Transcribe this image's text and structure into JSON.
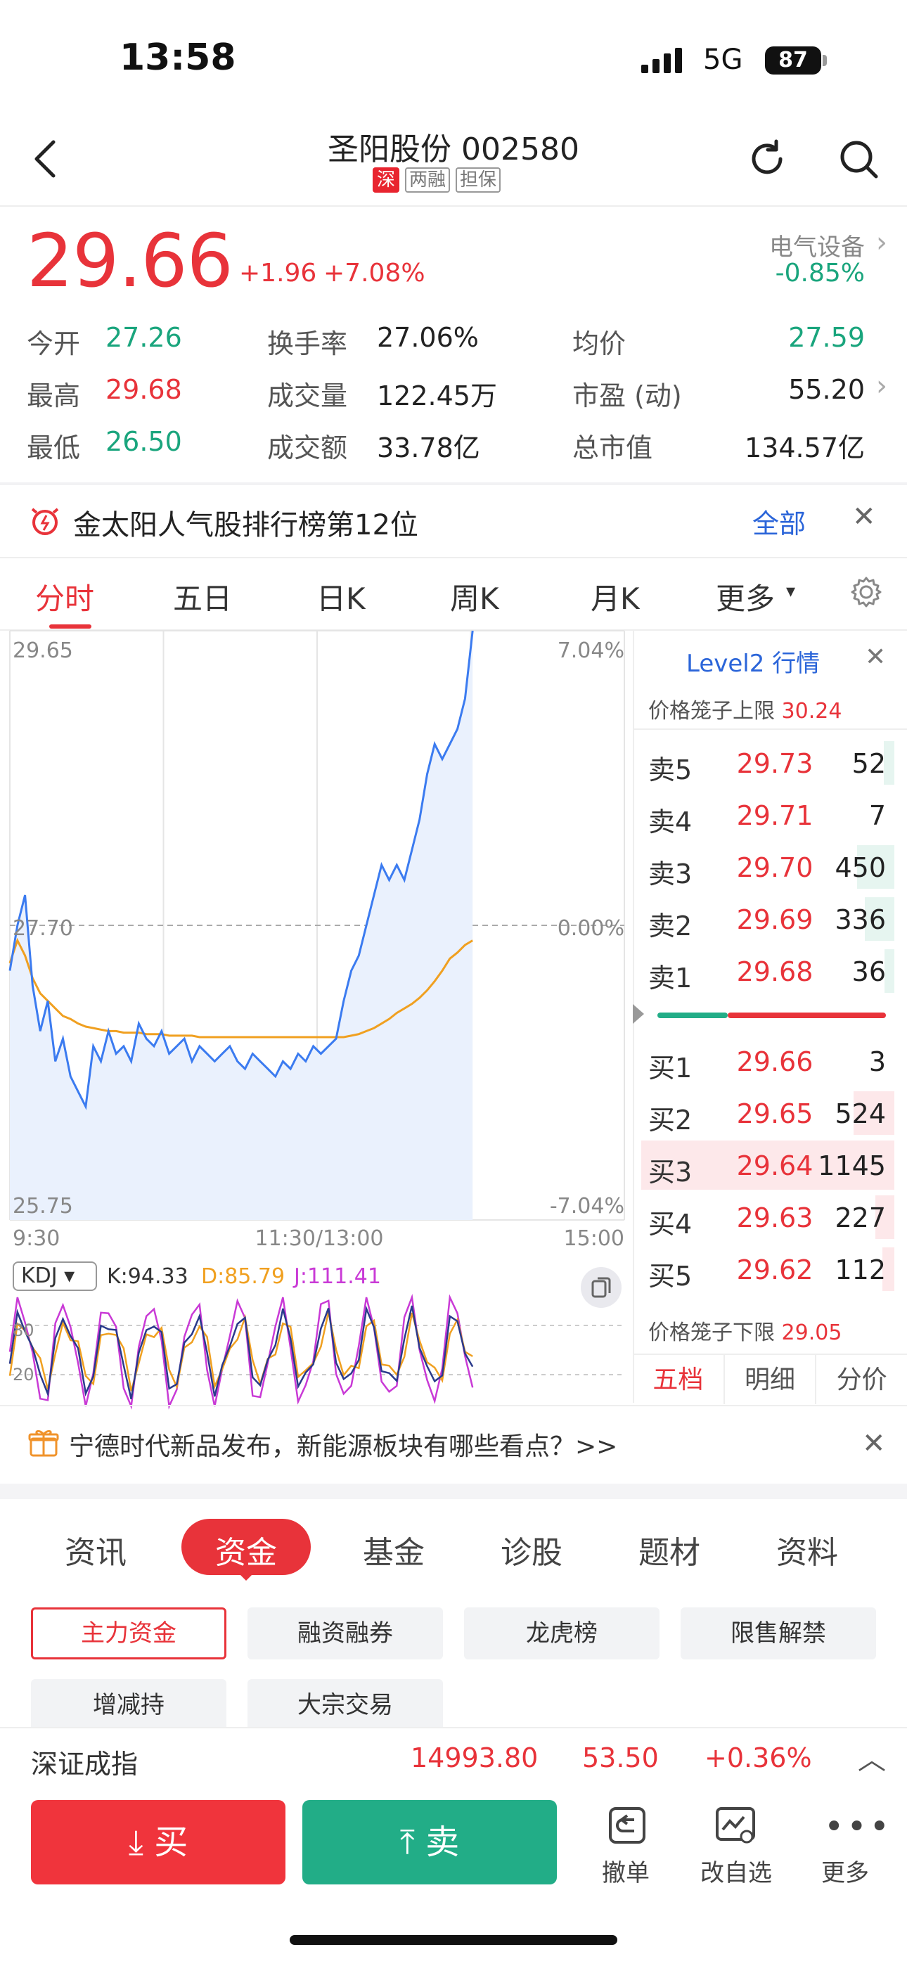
{
  "status_bar": {
    "time": "13:58",
    "network": "5G",
    "battery": "87"
  },
  "header": {
    "title": "圣阳股份 002580",
    "tags": [
      "深",
      "两融",
      "担保"
    ]
  },
  "quote": {
    "price": "29.66",
    "change": "+1.96",
    "change_pct": "+7.08%",
    "sector_name": "电气设备",
    "sector_pct": "-0.85%",
    "stats": [
      {
        "label": "今开",
        "value": "27.26"
      },
      {
        "label": "换手率",
        "value": "27.06%"
      },
      {
        "label": "均价",
        "value": "27.59"
      },
      {
        "label": "最高",
        "value": "29.68"
      },
      {
        "label": "成交量",
        "value": "122.45万"
      },
      {
        "label": "市盈 (动)",
        "value": "55.20"
      },
      {
        "label": "最低",
        "value": "26.50"
      },
      {
        "label": "成交额",
        "value": "33.78亿"
      },
      {
        "label": "总市值",
        "value": "134.57亿"
      }
    ]
  },
  "rank_banner": {
    "text": "金太阳人气股排行榜第12位",
    "action": "全部"
  },
  "period_tabs": [
    "分时",
    "五日",
    "日K",
    "周K",
    "月K",
    "更多"
  ],
  "chart_data": {
    "type": "line",
    "title": "",
    "y_labels": {
      "top": "29.65",
      "mid": "27.70",
      "bottom": "25.75"
    },
    "pct_labels": {
      "top": "7.04%",
      "mid": "0.00%",
      "bottom": "-7.04%"
    },
    "x_labels": [
      "9:30",
      "11:30/13:00",
      "15:00"
    ],
    "ylim": [
      25.75,
      29.65
    ],
    "prev_close": 27.7,
    "series": [
      {
        "color": "#3b7bf0",
        "values": [
          27.4,
          27.7,
          27.9,
          27.3,
          27.0,
          27.2,
          26.8,
          26.95,
          26.7,
          26.6,
          26.5,
          26.9,
          26.8,
          27.0,
          26.85,
          26.9,
          26.8,
          27.05,
          26.95,
          26.9,
          27.0,
          26.85,
          26.9,
          26.95,
          26.8,
          26.9,
          26.85,
          26.8,
          26.85,
          26.9,
          26.8,
          26.75,
          26.85,
          26.8,
          26.75,
          26.7,
          26.8,
          26.75,
          26.85,
          26.8,
          26.9,
          26.85,
          26.9,
          26.95,
          27.2,
          27.4,
          27.5,
          27.7,
          27.9,
          28.1,
          28.0,
          28.1,
          28.0,
          28.2,
          28.4,
          28.7,
          28.9,
          28.8,
          28.9,
          29.0,
          29.2,
          29.65
        ]
      },
      {
        "color": "#f0a020",
        "values": [
          27.45,
          27.6,
          27.5,
          27.35,
          27.25,
          27.2,
          27.15,
          27.1,
          27.08,
          27.05,
          27.03,
          27.02,
          27.01,
          27.0,
          27.0,
          26.99,
          26.99,
          26.99,
          26.98,
          26.98,
          26.98,
          26.97,
          26.97,
          26.97,
          26.97,
          26.96,
          26.96,
          26.96,
          26.96,
          26.96,
          26.96,
          26.96,
          26.96,
          26.96,
          26.96,
          26.96,
          26.96,
          26.96,
          26.96,
          26.96,
          26.96,
          26.96,
          26.96,
          26.96,
          26.96,
          26.97,
          26.98,
          27.0,
          27.02,
          27.05,
          27.08,
          27.12,
          27.15,
          27.18,
          27.22,
          27.27,
          27.33,
          27.4,
          27.48,
          27.52,
          27.57,
          27.6
        ]
      }
    ]
  },
  "kdj": {
    "selector": "KDJ",
    "k": "K:94.33",
    "d": "D:85.79",
    "j": "J:111.41",
    "levels": [
      "80",
      "20"
    ]
  },
  "level2": {
    "title": "Level2 行情",
    "upper_limit_label": "价格笼子上限",
    "upper_limit": "30.24",
    "lower_limit_label": "价格笼子下限",
    "lower_limit": "29.05",
    "sell": [
      {
        "label": "卖5",
        "price": "29.73",
        "vol": "52",
        "share": 0.04
      },
      {
        "label": "卖4",
        "price": "29.71",
        "vol": "7",
        "share": 0.0
      },
      {
        "label": "卖3",
        "price": "29.70",
        "vol": "450",
        "share": 0.36
      },
      {
        "label": "卖2",
        "price": "29.69",
        "vol": "336",
        "share": 0.27
      },
      {
        "label": "卖1",
        "price": "29.68",
        "vol": "36",
        "share": 0.03
      }
    ],
    "buy": [
      {
        "label": "买1",
        "price": "29.66",
        "vol": "3",
        "share": 0.0
      },
      {
        "label": "买2",
        "price": "29.65",
        "vol": "524",
        "share": 0.4
      },
      {
        "label": "买3",
        "price": "29.64",
        "vol": "1145",
        "share": 1.0
      },
      {
        "label": "买4",
        "price": "29.63",
        "vol": "227",
        "share": 0.14
      },
      {
        "label": "买5",
        "price": "29.62",
        "vol": "112",
        "share": 0.06
      }
    ],
    "tabs": [
      "五档",
      "明细",
      "分价"
    ]
  },
  "news_banner": {
    "text": "宁德时代新品发布，新能源板块有哪些看点？>>"
  },
  "section_tabs": [
    "资讯",
    "资金",
    "基金",
    "诊股",
    "题材",
    "资料"
  ],
  "fund_chips": [
    "主力资金",
    "融资融券",
    "龙虎榜",
    "限售解禁",
    "增减持",
    "大宗交易"
  ],
  "index_ticker": {
    "name": "深证成指",
    "value": "14993.80",
    "change": "53.50",
    "pct": "+0.36%"
  },
  "bottom_bar": {
    "buy": "买",
    "sell": "卖",
    "cancel": "撤单",
    "watchlist": "改自选",
    "more": "更多"
  },
  "colors": {
    "up": "#e8333a",
    "down": "#1aa57d",
    "accent": "#2b65d9"
  }
}
